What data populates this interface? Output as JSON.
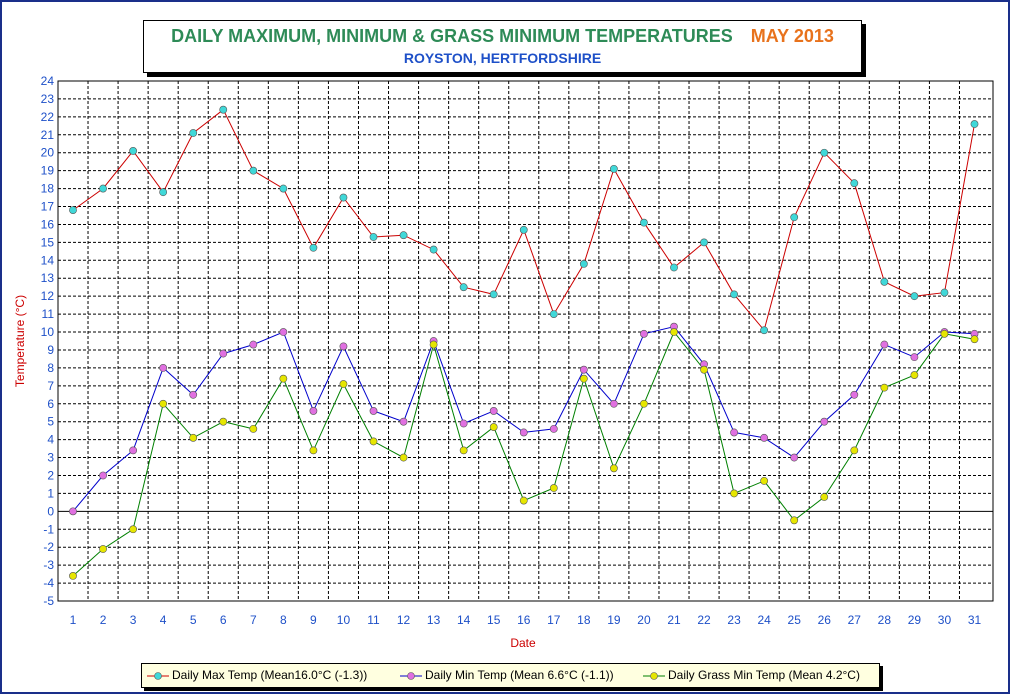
{
  "chart_data": {
    "type": "line",
    "title": "DAILY MAXIMUM, MINIMUM & GRASS MINIMUM TEMPERATURES",
    "title_month": "MAY 2013",
    "subtitle": "ROYSTON, HERTFORDSHIRE",
    "xlabel": "Date",
    "ylabel": "Temperature (°C)",
    "ylim": [
      -5,
      24
    ],
    "yticks": [
      -5,
      -4,
      -3,
      -2,
      -1,
      0,
      1,
      2,
      3,
      4,
      5,
      6,
      7,
      8,
      9,
      10,
      11,
      12,
      13,
      14,
      15,
      16,
      17,
      18,
      19,
      20,
      21,
      22,
      23,
      24
    ],
    "x": [
      1,
      2,
      3,
      4,
      5,
      6,
      7,
      8,
      9,
      10,
      11,
      12,
      13,
      14,
      15,
      16,
      17,
      18,
      19,
      20,
      21,
      22,
      23,
      24,
      25,
      26,
      27,
      28,
      29,
      30,
      31
    ],
    "grid": true,
    "legend_position": "bottom",
    "series": [
      {
        "name": "Daily Max Temp (Mean16.0°C (-1.3))",
        "line_color": "#cc0000",
        "marker_color": "#40d8d8",
        "values": [
          16.8,
          18.0,
          20.1,
          17.8,
          21.1,
          22.4,
          19.0,
          18.0,
          14.7,
          17.5,
          15.3,
          15.4,
          14.6,
          12.5,
          12.1,
          15.7,
          11.0,
          13.8,
          19.1,
          16.1,
          13.6,
          15.0,
          12.1,
          10.1,
          16.4,
          20.0,
          18.3,
          12.8,
          12.0,
          12.2,
          21.6
        ]
      },
      {
        "name": "Daily Min Temp (Mean 6.6°C (-1.1))",
        "line_color": "#0000cc",
        "marker_color": "#e070e0",
        "values": [
          0.0,
          2.0,
          3.4,
          8.0,
          6.5,
          8.8,
          9.3,
          10.0,
          5.6,
          9.2,
          5.6,
          5.0,
          9.5,
          4.9,
          5.6,
          4.4,
          4.6,
          7.9,
          6.0,
          9.9,
          10.3,
          8.2,
          4.4,
          4.1,
          3.0,
          5.0,
          6.5,
          9.3,
          8.6,
          10.0,
          9.9
        ]
      },
      {
        "name": "Daily Grass Min Temp (Mean 4.2°C)",
        "line_color": "#008000",
        "marker_color": "#e6e600",
        "values": [
          -3.6,
          -2.1,
          -1.0,
          6.0,
          4.1,
          5.0,
          4.6,
          7.4,
          3.4,
          7.1,
          3.9,
          3.0,
          9.3,
          3.4,
          4.7,
          0.6,
          1.3,
          7.4,
          2.4,
          6.0,
          10.0,
          7.9,
          1.0,
          1.7,
          -0.5,
          0.8,
          3.4,
          6.9,
          7.6,
          9.9,
          9.6
        ]
      }
    ]
  }
}
